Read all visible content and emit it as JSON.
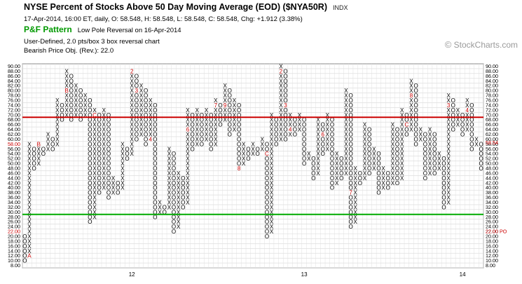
{
  "header": {
    "title": "NYSE Percent of Stocks Above 50 Day Moving Average (EOD) ($NYA50R)",
    "exchange": "INDX",
    "quote_line": "17-Apr-2014, 16:00 ET, daily, O: 58.548, H: 58.548, L: 58.548, C: 58.548, Chg: +1.912 (3.38%)",
    "pattern_label": "P&F Pattern",
    "pattern_text": "Low Pole Reversal on 16-Apr-2014",
    "settings_line": "User-Defined, 2.0 pts/box 3 box reversal chart",
    "price_objective": "Bearish Price Obj. (Rev.): 22.0"
  },
  "watermark": {
    "symbol": "©",
    "text": "StockCharts.com"
  },
  "chart_data": {
    "type": "point-and-figure",
    "box_size": 2,
    "reversal": 3,
    "ylim": [
      8,
      90
    ],
    "y_ticks": [
      8,
      10,
      12,
      14,
      16,
      18,
      20,
      22,
      24,
      26,
      28,
      30,
      32,
      34,
      36,
      38,
      40,
      42,
      44,
      46,
      48,
      50,
      52,
      54,
      56,
      58,
      60,
      62,
      64,
      66,
      68,
      70,
      72,
      74,
      76,
      78,
      80,
      82,
      84,
      86,
      88,
      90
    ],
    "x_labels": [
      {
        "label": "12",
        "column": 23
      },
      {
        "label": "13",
        "column": 60
      },
      {
        "label": "14",
        "column": 94
      }
    ],
    "columns": [
      {
        "type": "O",
        "low": 10,
        "high": 20
      },
      {
        "type": "X",
        "low": 12,
        "high": 58
      },
      {
        "type": "O",
        "low": 48,
        "high": 56
      },
      {
        "type": "X",
        "low": 50,
        "high": 58
      },
      {
        "type": "O",
        "low": 54,
        "high": 56
      },
      {
        "type": "X",
        "low": 56,
        "high": 62
      },
      {
        "type": "O",
        "low": 56,
        "high": 60
      },
      {
        "type": "X",
        "low": 58,
        "high": 76
      },
      {
        "type": "O",
        "low": 68,
        "high": 74
      },
      {
        "type": "X",
        "low": 70,
        "high": 88
      },
      {
        "type": "O",
        "low": 68,
        "high": 86
      },
      {
        "type": "X",
        "low": 70,
        "high": 82
      },
      {
        "type": "O",
        "low": 68,
        "high": 80
      },
      {
        "type": "X",
        "low": 70,
        "high": 78
      },
      {
        "type": "O",
        "low": 26,
        "high": 76
      },
      {
        "type": "X",
        "low": 28,
        "high": 72
      },
      {
        "type": "O",
        "low": 38,
        "high": 70
      },
      {
        "type": "X",
        "low": 40,
        "high": 72
      },
      {
        "type": "O",
        "low": 36,
        "high": 70
      },
      {
        "type": "X",
        "low": 38,
        "high": 44
      },
      {
        "type": "O",
        "low": 38,
        "high": 42
      },
      {
        "type": "X",
        "low": 40,
        "high": 58
      },
      {
        "type": "O",
        "low": 52,
        "high": 56
      },
      {
        "type": "X",
        "low": 54,
        "high": 88
      },
      {
        "type": "O",
        "low": 60,
        "high": 86
      },
      {
        "type": "X",
        "low": 62,
        "high": 82
      },
      {
        "type": "O",
        "low": 58,
        "high": 80
      },
      {
        "type": "X",
        "low": 60,
        "high": 76
      },
      {
        "type": "O",
        "low": 28,
        "high": 74
      },
      {
        "type": "X",
        "low": 30,
        "high": 34
      },
      {
        "type": "O",
        "low": 30,
        "high": 32
      },
      {
        "type": "X",
        "low": 32,
        "high": 56
      },
      {
        "type": "O",
        "low": 22,
        "high": 54
      },
      {
        "type": "X",
        "low": 24,
        "high": 46
      },
      {
        "type": "O",
        "low": 32,
        "high": 44
      },
      {
        "type": "X",
        "low": 34,
        "high": 72
      },
      {
        "type": "O",
        "low": 56,
        "high": 70
      },
      {
        "type": "X",
        "low": 58,
        "high": 72
      },
      {
        "type": "O",
        "low": 58,
        "high": 70
      },
      {
        "type": "X",
        "low": 60,
        "high": 72
      },
      {
        "type": "O",
        "low": 56,
        "high": 70
      },
      {
        "type": "X",
        "low": 58,
        "high": 76
      },
      {
        "type": "O",
        "low": 66,
        "high": 74
      },
      {
        "type": "X",
        "low": 68,
        "high": 82
      },
      {
        "type": "O",
        "low": 62,
        "high": 80
      },
      {
        "type": "X",
        "low": 64,
        "high": 76
      },
      {
        "type": "O",
        "low": 48,
        "high": 74
      },
      {
        "type": "X",
        "low": 50,
        "high": 58
      },
      {
        "type": "O",
        "low": 52,
        "high": 56
      },
      {
        "type": "X",
        "low": 54,
        "high": 58
      },
      {
        "type": "O",
        "low": 54,
        "high": 56
      },
      {
        "type": "X",
        "low": 56,
        "high": 60
      },
      {
        "type": "O",
        "low": 20,
        "high": 58
      },
      {
        "type": "X",
        "low": 22,
        "high": 70
      },
      {
        "type": "O",
        "low": 58,
        "high": 68
      },
      {
        "type": "X",
        "low": 60,
        "high": 90
      },
      {
        "type": "O",
        "low": 60,
        "high": 88
      },
      {
        "type": "X",
        "low": 62,
        "high": 70
      },
      {
        "type": "O",
        "low": 62,
        "high": 68
      },
      {
        "type": "X",
        "low": 64,
        "high": 70
      },
      {
        "type": "O",
        "low": 50,
        "high": 68
      },
      {
        "type": "X",
        "low": 52,
        "high": 54
      },
      {
        "type": "O",
        "low": 44,
        "high": 52
      },
      {
        "type": "X",
        "low": 46,
        "high": 68
      },
      {
        "type": "O",
        "low": 54,
        "high": 66
      },
      {
        "type": "X",
        "low": 56,
        "high": 70
      },
      {
        "type": "O",
        "low": 40,
        "high": 68
      },
      {
        "type": "X",
        "low": 42,
        "high": 54
      },
      {
        "type": "O",
        "low": 44,
        "high": 52
      },
      {
        "type": "X",
        "low": 46,
        "high": 80
      },
      {
        "type": "O",
        "low": 24,
        "high": 78
      },
      {
        "type": "X",
        "low": 26,
        "high": 48
      },
      {
        "type": "O",
        "low": 42,
        "high": 46
      },
      {
        "type": "X",
        "low": 44,
        "high": 66
      },
      {
        "type": "O",
        "low": 46,
        "high": 64
      },
      {
        "type": "X",
        "low": 48,
        "high": 56
      },
      {
        "type": "O",
        "low": 38,
        "high": 54
      },
      {
        "type": "X",
        "low": 40,
        "high": 48
      },
      {
        "type": "O",
        "low": 40,
        "high": 46
      },
      {
        "type": "X",
        "low": 42,
        "high": 66
      },
      {
        "type": "O",
        "low": 42,
        "high": 64
      },
      {
        "type": "X",
        "low": 44,
        "high": 72
      },
      {
        "type": "O",
        "low": 62,
        "high": 70
      },
      {
        "type": "X",
        "low": 64,
        "high": 84
      },
      {
        "type": "O",
        "low": 58,
        "high": 82
      },
      {
        "type": "X",
        "low": 60,
        "high": 64
      },
      {
        "type": "O",
        "low": 44,
        "high": 62
      },
      {
        "type": "X",
        "low": 46,
        "high": 64
      },
      {
        "type": "O",
        "low": 46,
        "high": 62
      },
      {
        "type": "X",
        "low": 48,
        "high": 54
      },
      {
        "type": "O",
        "low": 32,
        "high": 52
      },
      {
        "type": "X",
        "low": 34,
        "high": 78
      },
      {
        "type": "O",
        "low": 64,
        "high": 76
      },
      {
        "type": "X",
        "low": 66,
        "high": 72
      },
      {
        "type": "O",
        "low": 62,
        "high": 70
      },
      {
        "type": "X",
        "low": 64,
        "high": 76
      },
      {
        "type": "O",
        "low": 56,
        "high": 74
      },
      {
        "type": "X",
        "low": 58,
        "high": 60
      },
      {
        "type": "O",
        "low": 48,
        "high": 58
      }
    ],
    "month_markers": [
      {
        "col": 1,
        "value": 12,
        "label": "A"
      },
      {
        "col": 3,
        "value": 58,
        "label": "B"
      },
      {
        "col": 9,
        "value": 80,
        "label": "B"
      },
      {
        "col": 15,
        "value": 70,
        "label": "C"
      },
      {
        "col": 23,
        "value": 88,
        "label": "2"
      },
      {
        "col": 23,
        "value": 52,
        "label": "1"
      },
      {
        "col": 24,
        "value": 80,
        "label": "3"
      },
      {
        "col": 27,
        "value": 60,
        "label": "4"
      },
      {
        "col": 33,
        "value": 54,
        "label": "5"
      },
      {
        "col": 35,
        "value": 64,
        "label": "6"
      },
      {
        "col": 41,
        "value": 74,
        "label": "7"
      },
      {
        "col": 43,
        "value": 74,
        "label": "9"
      },
      {
        "col": 46,
        "value": 48,
        "label": "8"
      },
      {
        "col": 52,
        "value": 54,
        "label": "C"
      },
      {
        "col": 55,
        "value": 88,
        "label": "2"
      },
      {
        "col": 53,
        "value": 74,
        "label": "1"
      },
      {
        "col": 56,
        "value": 74,
        "label": "3"
      },
      {
        "col": 57,
        "value": 64,
        "label": "4"
      },
      {
        "col": 61,
        "value": 64,
        "label": "5"
      },
      {
        "col": 64,
        "value": 62,
        "label": "6"
      },
      {
        "col": 70,
        "value": 38,
        "label": "7"
      },
      {
        "col": 73,
        "value": 38,
        "label": "9"
      },
      {
        "col": 71,
        "value": 62,
        "label": "8"
      },
      {
        "col": 78,
        "value": 74,
        "label": "A"
      },
      {
        "col": 80,
        "value": 66,
        "label": "B"
      },
      {
        "col": 83,
        "value": 78,
        "label": "8"
      },
      {
        "col": 82,
        "value": 66,
        "label": "C"
      },
      {
        "col": 86,
        "value": 68,
        "label": "1"
      },
      {
        "col": 84,
        "value": 46,
        "label": "2"
      },
      {
        "col": 91,
        "value": 74,
        "label": "3"
      },
      {
        "col": 95,
        "value": 72,
        "label": "4"
      }
    ],
    "resistance_line": {
      "value": 69,
      "color": "#cc0000"
    },
    "support_line": {
      "value": 29,
      "color": "#00aa00"
    },
    "last_box": {
      "col": 99,
      "value": 58,
      "label": "X",
      "color": "#00aa00"
    },
    "right_annotations": [
      {
        "value": 58.54,
        "text": "58.54",
        "color": "#cc0000"
      },
      {
        "value": 22,
        "text": "22.00 PO",
        "color": "#cc0000"
      }
    ],
    "left_annotations": [
      {
        "value": 58,
        "text": "58.00",
        "color": "#cc0000"
      },
      {
        "value": 22,
        "text": "22.00",
        "color": "#cc0000"
      }
    ]
  }
}
